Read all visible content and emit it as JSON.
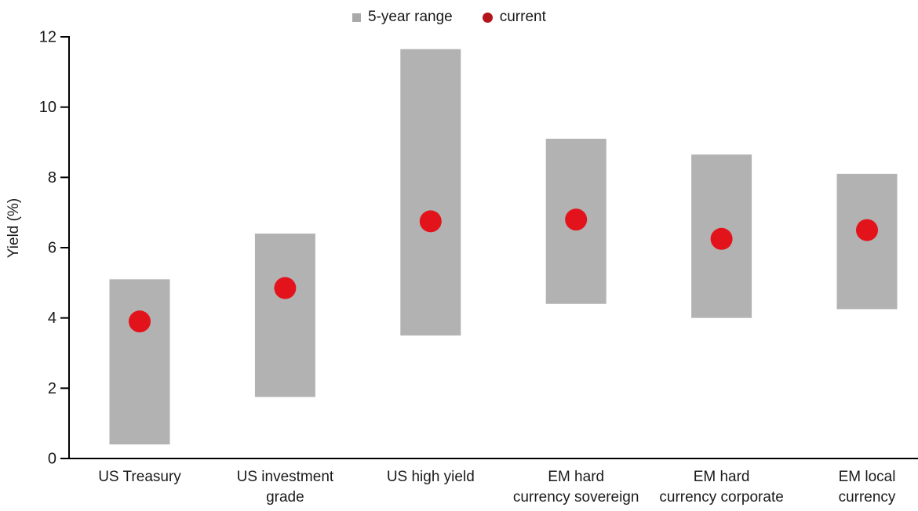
{
  "page": {
    "background": "#ffffff"
  },
  "legend": {
    "items": [
      {
        "label": "5-year range",
        "marker": "square",
        "color": "#a9a9a9"
      },
      {
        "label": "current",
        "marker": "dot",
        "color": "#b2161b"
      }
    ]
  },
  "chart_data": {
    "type": "bar",
    "subtype": "floating-range-bars-with-current-dot",
    "title": "",
    "xlabel": "",
    "ylabel": "Yield (%)",
    "ylim": [
      0,
      12
    ],
    "yticks": [
      0,
      2,
      4,
      6,
      8,
      10,
      12
    ],
    "grid": false,
    "legend_position": "top-center",
    "categories": [
      "US Treasury",
      "US investment grade",
      "US high yield",
      "EM hard currency sovereign",
      "EM hard currency corporate",
      "EM local currency"
    ],
    "category_label_lines": [
      [
        "US Treasury"
      ],
      [
        "US investment",
        "grade"
      ],
      [
        "US high yield"
      ],
      [
        "EM hard",
        "currency sovereign"
      ],
      [
        "EM hard",
        "currency corporate"
      ],
      [
        "EM local",
        "currency"
      ]
    ],
    "series": [
      {
        "name": "5-year range low",
        "values": [
          0.4,
          1.75,
          3.5,
          4.4,
          4.0,
          4.25
        ]
      },
      {
        "name": "5-year range high",
        "values": [
          5.1,
          6.4,
          11.65,
          9.1,
          8.65,
          8.1
        ]
      },
      {
        "name": "current",
        "values": [
          3.9,
          4.85,
          6.75,
          6.8,
          6.25,
          6.5
        ]
      }
    ],
    "colors": {
      "range_bar": "#b2b2b2",
      "current_dot": "#e3131c",
      "legend_square": "#a9a9a9",
      "legend_dot": "#b2161b",
      "axis": "#000000",
      "text": "#1a1a1a"
    }
  }
}
